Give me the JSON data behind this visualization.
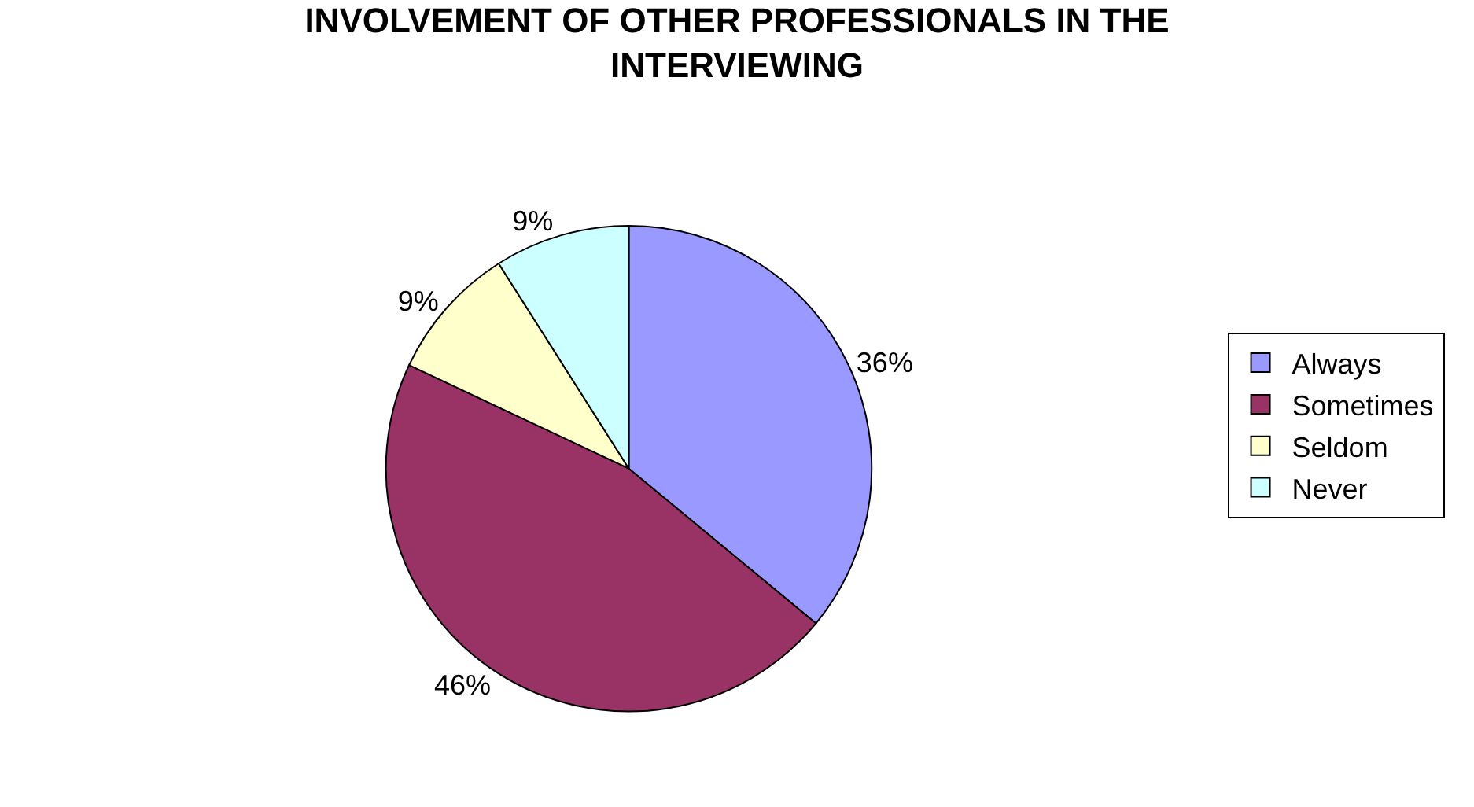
{
  "chart_data": {
    "type": "pie",
    "title": "INVOLVEMENT OF OTHER PROFESSIONALS IN THE INTERVIEWING",
    "categories": [
      "Always",
      "Sometimes",
      "Seldom",
      "Never"
    ],
    "values": [
      36,
      46,
      9,
      9
    ],
    "colors": [
      "#9999ff",
      "#993366",
      "#ffffcc",
      "#ccffff"
    ],
    "value_labels": [
      "36%",
      "46%",
      "9%",
      "9%"
    ],
    "legend": "right"
  }
}
